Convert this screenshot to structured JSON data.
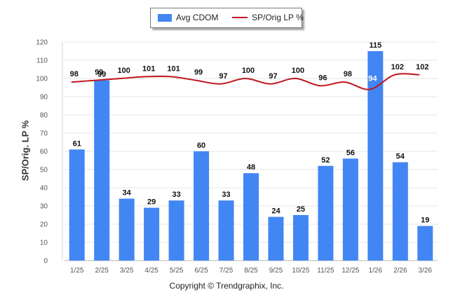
{
  "chart_data": {
    "type": "bar",
    "title": "",
    "xlabel": "",
    "ylabel": "SP/Orig. LP %",
    "ylim": [
      0,
      120
    ],
    "yticks": [
      "0",
      "10",
      "20",
      "30",
      "40",
      "50",
      "60",
      "70",
      "80",
      "90",
      "100",
      "110",
      "120"
    ],
    "grid": true,
    "legend_position": "top-center",
    "categories": [
      "1/25",
      "2/25",
      "3/25",
      "4/25",
      "5/25",
      "6/25",
      "7/25",
      "8/25",
      "9/25",
      "10/25",
      "11/25",
      "12/25",
      "1/26",
      "2/26",
      "3/26"
    ],
    "series": [
      {
        "name": "Avg CDOM",
        "kind": "bar",
        "color": "#4286f4",
        "values": [
          61,
          99,
          34,
          29,
          33,
          60,
          33,
          48,
          24,
          25,
          52,
          56,
          115,
          54,
          19
        ]
      },
      {
        "name": "SP/Orig LP %",
        "kind": "line",
        "color": "#c0151b",
        "values": [
          98,
          99,
          100,
          101,
          101,
          99,
          97,
          100,
          97,
          100,
          96,
          98,
          94,
          102,
          102
        ]
      }
    ]
  },
  "footer": {
    "copyright": "Copyright © Trendgraphix, Inc."
  }
}
